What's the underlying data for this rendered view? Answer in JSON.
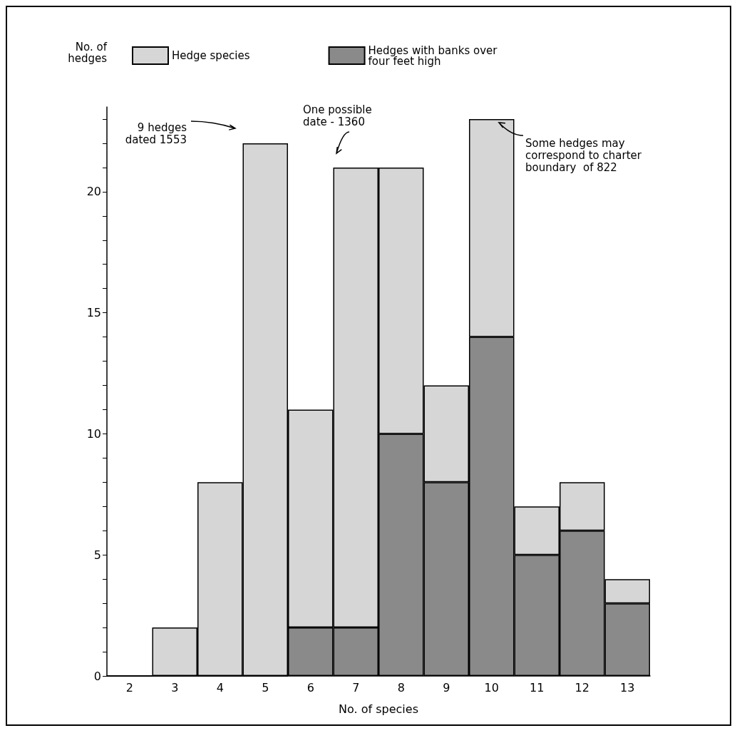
{
  "chart_data": {
    "type": "bar",
    "stacked": true,
    "categories": [
      "2",
      "3",
      "4",
      "5",
      "6",
      "7",
      "8",
      "9",
      "10",
      "11",
      "12",
      "13"
    ],
    "series": [
      {
        "name": "Hedges with banks over\nfour feet high",
        "color": "#8a8a8a",
        "values": [
          0,
          0,
          0,
          0,
          2,
          2,
          10,
          8,
          14,
          5,
          6,
          3
        ]
      },
      {
        "name": "Hedge species",
        "color": "#d6d6d6",
        "values": [
          0,
          2,
          8,
          22,
          9,
          19,
          11,
          4,
          9,
          2,
          2,
          1
        ]
      }
    ],
    "xlabel": "No. of species",
    "ylabel": "No. of\nhedges",
    "ylim": [
      0,
      23.5
    ],
    "yticks": [
      0,
      {
        "value": 1,
        "label": null
      },
      {
        "value": 2,
        "label": null
      },
      {
        "value": 3,
        "label": null
      },
      {
        "value": 4,
        "label": null
      },
      5,
      {
        "value": 6,
        "label": null
      },
      {
        "value": 7,
        "label": null
      },
      {
        "value": 8,
        "label": null
      },
      {
        "value": 9,
        "label": null
      },
      10,
      {
        "value": 11,
        "label": null
      },
      {
        "value": 12,
        "label": null
      },
      {
        "value": 13,
        "label": null
      },
      {
        "value": 14,
        "label": null
      },
      15,
      {
        "value": 16,
        "label": null
      },
      {
        "value": 17,
        "label": null
      },
      {
        "value": 18,
        "label": null
      },
      {
        "value": 19,
        "label": null
      },
      20,
      {
        "value": 21,
        "label": null
      },
      {
        "value": 22,
        "label": null
      },
      {
        "value": 23,
        "label": null
      }
    ],
    "annotations": [
      "9 hedges\ndated 1553",
      "One possible\ndate - 1360",
      "Some hedges may\ncorrespond to charter\nboundary  of 822"
    ],
    "legend": "top left",
    "grid": false
  }
}
